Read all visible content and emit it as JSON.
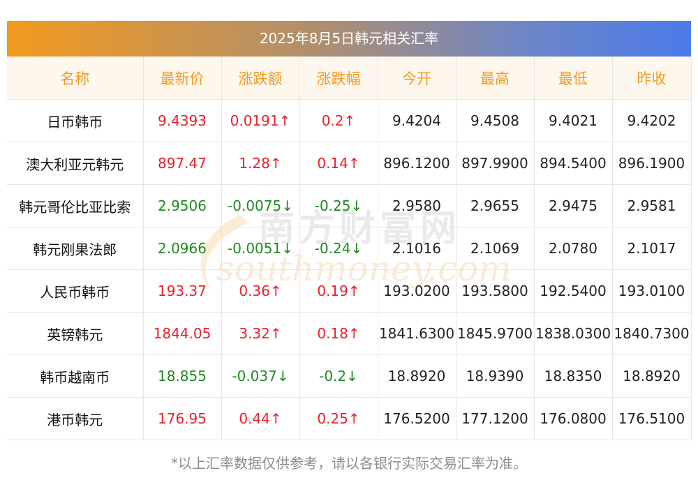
{
  "title": "2025年8月5日韩元相关汇率",
  "headers": [
    "名称",
    "最新价",
    "涨跌额",
    "涨跌幅",
    "今开",
    "最高",
    "最低",
    "昨收"
  ],
  "rows": [
    {
      "name": "日币韩币",
      "latest": "9.4393",
      "change": "0.0191↑",
      "pct": "0.2↑",
      "open": "9.4204",
      "high": "9.4508",
      "low": "9.4021",
      "prev": "9.4202",
      "trend": "up"
    },
    {
      "name": "澳大利亚元韩元",
      "latest": "897.47",
      "change": "1.28↑",
      "pct": "0.14↑",
      "open": "896.1200",
      "high": "897.9900",
      "low": "894.5400",
      "prev": "896.1900",
      "trend": "up"
    },
    {
      "name": "韩元哥伦比亚比索",
      "latest": "2.9506",
      "change": "-0.0075↓",
      "pct": "-0.25↓",
      "open": "2.9580",
      "high": "2.9655",
      "low": "2.9475",
      "prev": "2.9581",
      "trend": "down"
    },
    {
      "name": "韩元刚果法郎",
      "latest": "2.0966",
      "change": "-0.0051↓",
      "pct": "-0.24↓",
      "open": "2.1016",
      "high": "2.1069",
      "low": "2.0780",
      "prev": "2.1017",
      "trend": "down"
    },
    {
      "name": "人民币韩币",
      "latest": "193.37",
      "change": "0.36↑",
      "pct": "0.19↑",
      "open": "193.0200",
      "high": "193.5800",
      "low": "192.5400",
      "prev": "193.0100",
      "trend": "up"
    },
    {
      "name": "英镑韩元",
      "latest": "1844.05",
      "change": "3.32↑",
      "pct": "0.18↑",
      "open": "1841.6300",
      "high": "1845.9700",
      "low": "1838.0300",
      "prev": "1840.7300",
      "trend": "up"
    },
    {
      "name": "韩币越南币",
      "latest": "18.855",
      "change": "-0.037↓",
      "pct": "-0.2↓",
      "open": "18.8920",
      "high": "18.9390",
      "low": "18.8350",
      "prev": "18.8920",
      "trend": "down"
    },
    {
      "name": "港币韩元",
      "latest": "176.95",
      "change": "0.44↑",
      "pct": "0.25↑",
      "open": "176.5200",
      "high": "177.1200",
      "low": "176.0800",
      "prev": "176.5100",
      "trend": "up"
    }
  ],
  "watermark": {
    "cn": "南方财富网",
    "en": "southmoney.com"
  },
  "footer": "*以上汇率数据仅供参考，请以各银行实际交易汇率为准。",
  "colors": {
    "up": "#e8202a",
    "down": "#1e8a1e",
    "header_text": "#f39a1e",
    "header_bg": "#fdf7ee",
    "banner_start": "#f39a1e",
    "banner_end": "#4b7ae8"
  }
}
